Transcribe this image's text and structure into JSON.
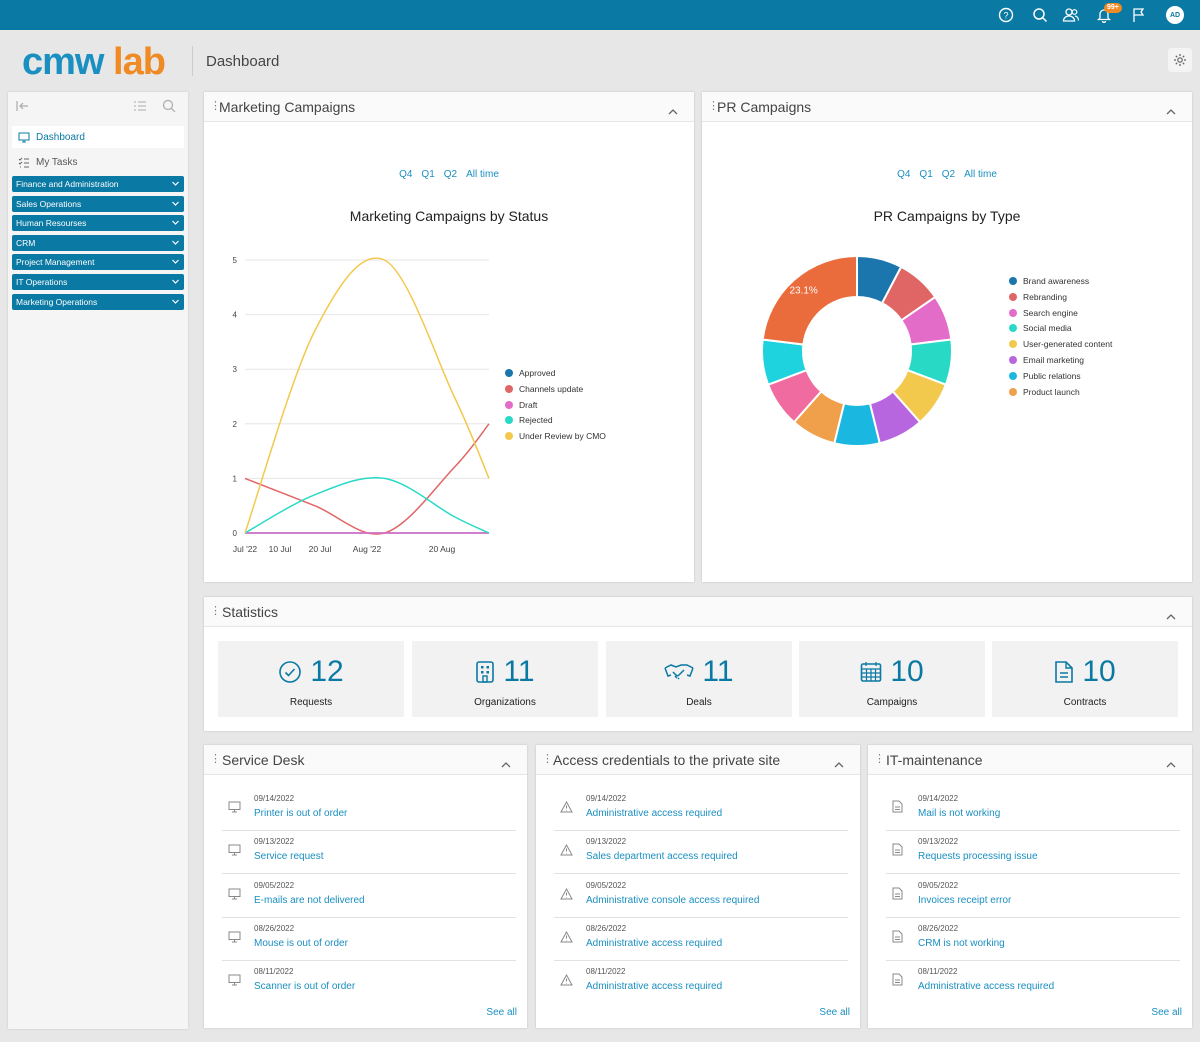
{
  "topbar": {
    "icons": [
      "help-icon",
      "search-icon",
      "users-icon",
      "bell-icon",
      "flag-icon"
    ],
    "notification_badge": "99+",
    "avatar_initials": "AD"
  },
  "brand": {
    "logo_part1": "cmw",
    "logo_part2": "lab"
  },
  "header": {
    "title": "Dashboard"
  },
  "sidebar": {
    "items": [
      {
        "label": "Dashboard",
        "icon": "monitor-icon"
      },
      {
        "label": "My Tasks",
        "icon": "tasks-icon"
      }
    ],
    "groups": [
      "Finance and Administration",
      "Sales Operations",
      "Human Resourses",
      "CRM",
      "Project Management",
      "IT Operations",
      "Marketing Operations"
    ]
  },
  "marketing": {
    "panel_title": "Marketing Campaigns",
    "tabs": [
      "Q4",
      "Q1",
      "Q2",
      "All time"
    ]
  },
  "pr": {
    "panel_title": "PR Campaigns",
    "tabs": [
      "Q4",
      "Q1",
      "Q2",
      "All time"
    ]
  },
  "chart_data": [
    {
      "type": "line",
      "title": "Marketing Campaigns by Status",
      "x": [
        "2022-07-01",
        "2022-07-17",
        "2022-08-02",
        "2022-08-18",
        "2022-08-26"
      ],
      "x_tick_labels": [
        "Jul '22",
        "10 Jul",
        "20 Jul",
        "Aug '22",
        "20 Aug"
      ],
      "ylim": [
        0,
        5
      ],
      "y_ticks": [
        0,
        1,
        2,
        3,
        4,
        5
      ],
      "grid": true,
      "legend": "right",
      "series": [
        {
          "name": "Approved",
          "color": "#1a76ad",
          "values": [
            0,
            0,
            0,
            0,
            0
          ]
        },
        {
          "name": "Channels update",
          "color": "#e06666",
          "values": [
            1,
            0.5,
            0,
            1.2,
            2
          ]
        },
        {
          "name": "Draft",
          "color": "#e36cc8",
          "values": [
            0,
            0,
            0,
            0,
            0
          ]
        },
        {
          "name": "Rejected",
          "color": "#28dac6",
          "values": [
            0,
            0.7,
            1,
            0.3,
            0
          ]
        },
        {
          "name": "Under Review by CMO",
          "color": "#f2c94c",
          "values": [
            0,
            3.7,
            5,
            2.5,
            1
          ]
        }
      ]
    },
    {
      "type": "pie",
      "title": "PR Campaigns by Type",
      "legend": "right",
      "slices": [
        {
          "name": "Brand awareness",
          "value": 7.7,
          "color": "#1a76ad"
        },
        {
          "name": "Rebranding",
          "value": 7.7,
          "color": "#e06666"
        },
        {
          "name": "Search engine",
          "value": 7.7,
          "color": "#e36cc8"
        },
        {
          "name": "Social media",
          "value": 7.7,
          "color": "#28dac6"
        },
        {
          "name": "User-generated content",
          "value": 7.7,
          "color": "#f2c94c"
        },
        {
          "name": "Email marketing",
          "value": 7.7,
          "color": "#b866e0"
        },
        {
          "name": "Public relations",
          "value": 7.7,
          "color": "#1ab8e0"
        },
        {
          "name": "Product launch",
          "value": 7.7,
          "color": "#f0a04b"
        },
        {
          "name": "",
          "value": 7.7,
          "color": "#f06ba0"
        },
        {
          "name": "",
          "value": 7.7,
          "color": "#1fd3de"
        },
        {
          "name": "",
          "value": 23.1,
          "color": "#ea6b3b",
          "label": "23.1%"
        }
      ]
    }
  ],
  "statistics": {
    "panel_title": "Statistics",
    "cards": [
      {
        "value": "12",
        "label": "Requests",
        "icon": "check-circle-icon"
      },
      {
        "value": "11",
        "label": "Organizations",
        "icon": "building-icon"
      },
      {
        "value": "11",
        "label": "Deals",
        "icon": "handshake-icon"
      },
      {
        "value": "10",
        "label": "Campaigns",
        "icon": "calendar-icon"
      },
      {
        "value": "10",
        "label": "Contracts",
        "icon": "document-icon"
      }
    ]
  },
  "service_desk": {
    "panel_title": "Service Desk",
    "see_all": "See all",
    "items": [
      {
        "date": "09/14/2022",
        "title": "Printer is out of order"
      },
      {
        "date": "09/13/2022",
        "title": "Service request"
      },
      {
        "date": "09/05/2022",
        "title": "E-mails are not delivered"
      },
      {
        "date": "08/26/2022",
        "title": "Mouse is out of order"
      },
      {
        "date": "08/11/2022",
        "title": "Scanner is out of order"
      }
    ]
  },
  "access": {
    "panel_title": "Access credentials to the private site",
    "see_all": "See all",
    "items": [
      {
        "date": "09/14/2022",
        "title": "Administrative access required"
      },
      {
        "date": "09/13/2022",
        "title": "Sales department access required"
      },
      {
        "date": "09/05/2022",
        "title": "Administrative console access required"
      },
      {
        "date": "08/26/2022",
        "title": "Administrative access required"
      },
      {
        "date": "08/11/2022",
        "title": "Administrative access required"
      }
    ]
  },
  "it": {
    "panel_title": "IT-maintenance",
    "see_all": "See all",
    "items": [
      {
        "date": "09/14/2022",
        "title": "Mail is not working"
      },
      {
        "date": "09/13/2022",
        "title": "Requests processing issue"
      },
      {
        "date": "09/05/2022",
        "title": "Invoices receipt error"
      },
      {
        "date": "08/26/2022",
        "title": "CRM is not working"
      },
      {
        "date": "08/11/2022",
        "title": "Administrative access required"
      }
    ]
  }
}
